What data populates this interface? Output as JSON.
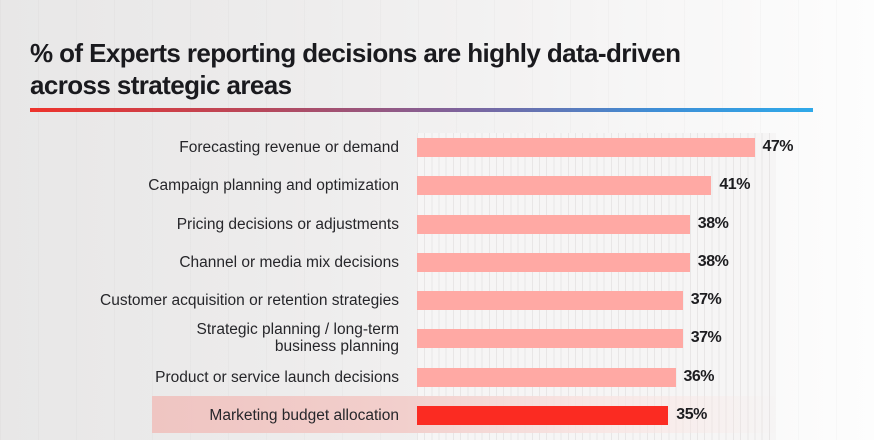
{
  "header": {
    "title_line1": "% of Experts reporting decisions are highly data-driven",
    "title_line2": "across strategic areas",
    "underline_gradient_start": "#EE332C",
    "underline_gradient_end": "#2FA9E9"
  },
  "chart_data": {
    "type": "bar",
    "orientation": "horizontal",
    "title": "% of Experts reporting decisions are highly data-driven across strategic areas",
    "categories": [
      "Forecasting revenue or demand",
      "Campaign planning and optimization",
      "Pricing decisions or adjustments",
      "Channel or media mix decisions",
      "Customer acquisition or retention strategies",
      "Strategic planning / long-term business planning",
      "Product or service launch decisions",
      "Marketing budget allocation"
    ],
    "values": [
      47,
      41,
      38,
      38,
      37,
      37,
      36,
      35
    ],
    "value_labels": [
      "47%",
      "41%",
      "38%",
      "38%",
      "37%",
      "37%",
      "36%",
      "35%"
    ],
    "xlim": [
      0,
      50
    ],
    "gridlines": {
      "axis": "x",
      "interval_percent": 1,
      "visible": true
    },
    "legend": "none",
    "highlighted_category": "Marketing budget allocation",
    "colors": {
      "bar": "#FFA9A4",
      "highlighted_bar": "#FB2B22",
      "highlight_band": "#EFC5C2",
      "value_label": "#1D1D20",
      "category_label": "#26262A",
      "plot_background": "#F6F5F5",
      "gridline": "#E8E6E6",
      "title_text": "#1A1A1E"
    }
  }
}
